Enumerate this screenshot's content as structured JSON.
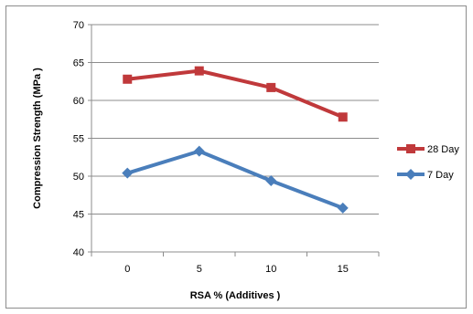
{
  "chart_data": {
    "type": "line",
    "title": "",
    "xlabel": "RSA % (Additives )",
    "ylabel": "Compression Strength (MPa )",
    "categories": [
      "0",
      "5",
      "10",
      "15"
    ],
    "ylim": [
      40,
      70
    ],
    "yticks": [
      40,
      45,
      50,
      55,
      60,
      65,
      70
    ],
    "grid": "horizontal",
    "legend_position": "right",
    "series": [
      {
        "name": "28 Day",
        "values": [
          62.8,
          63.9,
          61.7,
          57.8
        ],
        "color": "#c0393b",
        "marker": "square"
      },
      {
        "name": "7 Day",
        "values": [
          50.4,
          53.3,
          49.4,
          45.8
        ],
        "color": "#4a7ebb",
        "marker": "diamond"
      }
    ]
  }
}
